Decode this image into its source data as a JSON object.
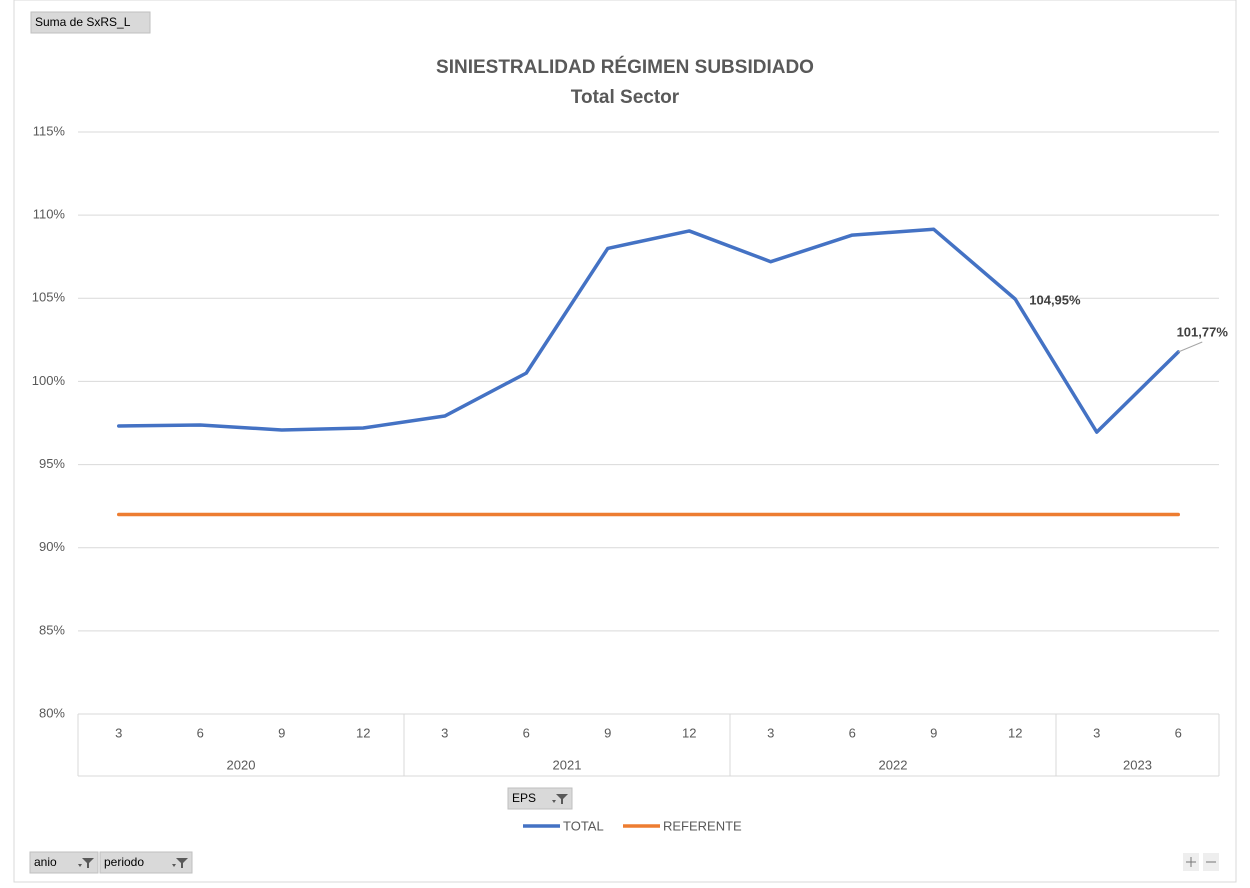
{
  "chart_data": {
    "type": "line",
    "title": "SINIESTRALIDAD RÉGIMEN SUBSIDIADO",
    "subtitle": "Total Sector",
    "category_groups": [
      {
        "label": "2020",
        "categories": [
          "3",
          "6",
          "9",
          "12"
        ]
      },
      {
        "label": "2021",
        "categories": [
          "3",
          "6",
          "9",
          "12"
        ]
      },
      {
        "label": "2022",
        "categories": [
          "3",
          "6",
          "9",
          "12"
        ]
      },
      {
        "label": "2023",
        "categories": [
          "3",
          "6"
        ]
      }
    ],
    "series": [
      {
        "name": "TOTAL",
        "color": "#4472c4",
        "values": [
          97.32,
          97.38,
          97.08,
          97.2,
          97.92,
          100.5,
          108.0,
          109.05,
          107.2,
          108.8,
          109.15,
          104.95,
          96.95,
          101.77
        ],
        "value_labels": [
          null,
          null,
          null,
          null,
          null,
          null,
          null,
          null,
          null,
          null,
          null,
          "104,95%",
          null,
          "101,77%"
        ]
      },
      {
        "name": "REFERENTE",
        "color": "#ed7d31",
        "values": [
          92,
          92,
          92,
          92,
          92,
          92,
          92,
          92,
          92,
          92,
          92,
          92,
          92,
          92
        ]
      }
    ],
    "ylim": [
      80,
      115
    ],
    "yticks": [
      {
        "value": 80,
        "label": "80%"
      },
      {
        "value": 85,
        "label": "85%"
      },
      {
        "value": 90,
        "label": "90%"
      },
      {
        "value": 95,
        "label": "95%"
      },
      {
        "value": 100,
        "label": "100%"
      },
      {
        "value": 105,
        "label": "105%"
      },
      {
        "value": 110,
        "label": "110%"
      },
      {
        "value": 115,
        "label": "115%"
      }
    ],
    "grid": true,
    "legend": "bottom"
  },
  "pivot": {
    "value_field": "Suma de SxRS_L",
    "legend_field": "EPS",
    "axis_fields": [
      "anio",
      "periodo"
    ]
  }
}
